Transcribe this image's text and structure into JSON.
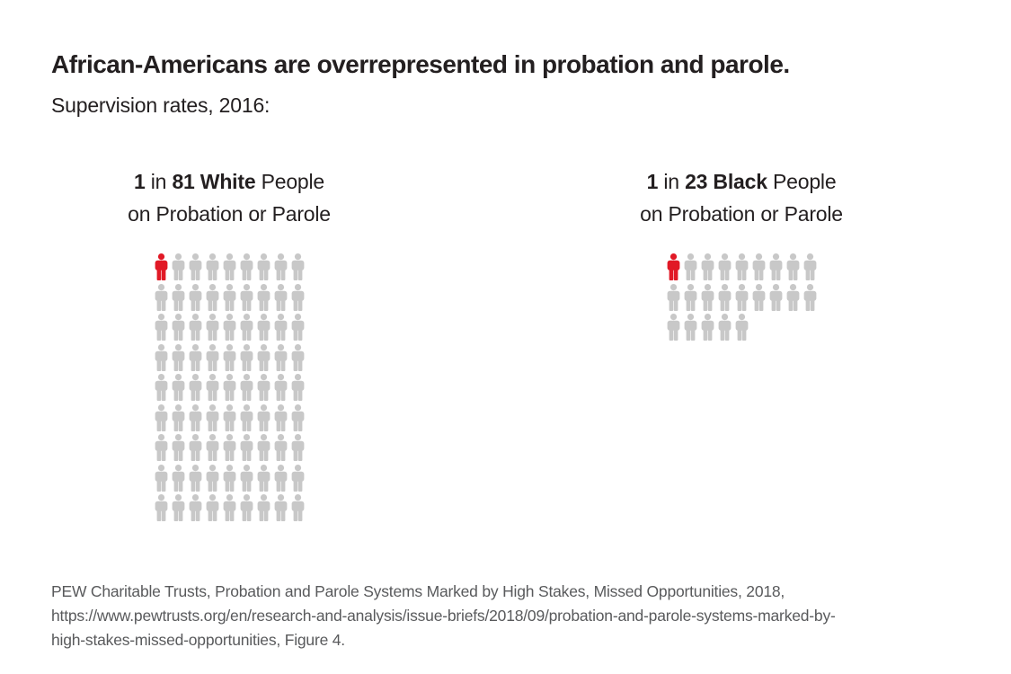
{
  "page": {
    "title": "African-Americans are overrepresented in probation and parole.",
    "subtitle": "Supervision rates, 2016:",
    "source": "PEW Charitable Trusts, Probation and Parole Systems Marked by High Stakes, Missed Opportunities, 2018,\nhttps://www.pewtrusts.org/en/research-and-analysis/issue-briefs/2018/09/probation-and-parole-systems-marked-by-\nhigh-stakes-missed-opportunities, Figure 4."
  },
  "colors": {
    "highlight_red": "#e11926",
    "icon_gray": "#c8c8c8",
    "text_dark": "#231f20",
    "source_gray": "#595a5c",
    "background": "#ffffff"
  },
  "chart_data": [
    {
      "type": "pictograph",
      "group": "White",
      "ratio": "1 in 81",
      "total_icons": 81,
      "highlighted_icons": 1,
      "columns": 9,
      "rows": 9,
      "icon": "person-icon",
      "label_parts": {
        "bold_lead": "1",
        "mid": " in ",
        "bold_value": "81 White",
        "tail": " People",
        "line2": "on Probation or Parole"
      }
    },
    {
      "type": "pictograph",
      "group": "Black",
      "ratio": "1 in 23",
      "total_icons": 23,
      "highlighted_icons": 1,
      "columns": 9,
      "rows": 3,
      "icon": "person-icon",
      "label_parts": {
        "bold_lead": "1",
        "mid": " in ",
        "bold_value": "23 Black",
        "tail": " People",
        "line2": "on Probation or Parole"
      }
    }
  ]
}
